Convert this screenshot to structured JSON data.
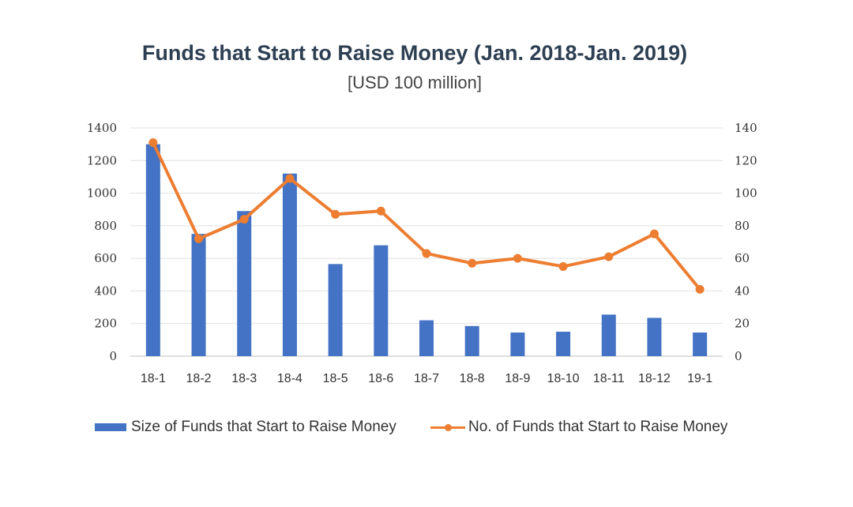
{
  "chart_data": {
    "type": "bar",
    "title": "Funds that Start to Raise Money (Jan. 2018-Jan. 2019)",
    "subtitle": "[USD 100 million]",
    "categories": [
      "18-1",
      "18-2",
      "18-3",
      "18-4",
      "18-5",
      "18-6",
      "18-7",
      "18-8",
      "18-9",
      "18-10",
      "18-11",
      "18-12",
      "19-1"
    ],
    "series": [
      {
        "name": "Size of Funds that Start to Raise Money",
        "type": "bar",
        "axis": "left",
        "color": "#4472c4",
        "values": [
          1300,
          750,
          890,
          1120,
          565,
          680,
          220,
          185,
          145,
          150,
          255,
          235,
          145
        ]
      },
      {
        "name": "No. of Funds that Start to Raise Money",
        "type": "line",
        "axis": "right",
        "color": "#ed7d31",
        "values": [
          131,
          72,
          84,
          109,
          87,
          89,
          63,
          57,
          60,
          55,
          61,
          75,
          41
        ]
      }
    ],
    "y_left": {
      "min": 0,
      "max": 1400,
      "ticks": [
        "0",
        "200",
        "400",
        "600",
        "800",
        "1000",
        "1200",
        "1400"
      ]
    },
    "y_right": {
      "min": 0,
      "max": 140,
      "ticks": [
        "0",
        "20",
        "40",
        "60",
        "80",
        "100",
        "120",
        "140"
      ]
    },
    "grid": true,
    "legend": "bottom"
  }
}
